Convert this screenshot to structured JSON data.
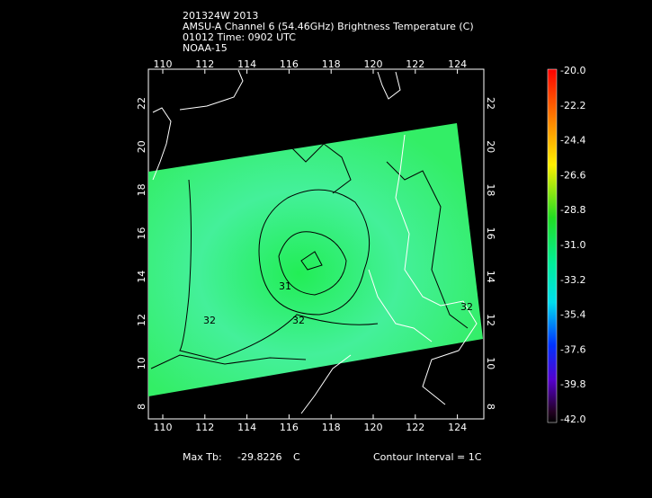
{
  "header": {
    "lines": [
      "201324W 2013",
      "AMSU-A Channel 6 (54.46GHz) Brightness Temperature (C)",
      "01012 Time: 0902 UTC",
      "NOAA-15"
    ]
  },
  "map": {
    "longitude_ticks": [
      110,
      112,
      114,
      116,
      118,
      120,
      122,
      124
    ],
    "latitude_ticks": [
      22,
      20,
      18,
      16,
      14,
      12,
      10,
      8
    ],
    "contour_labels": [
      "31",
      "32",
      "32",
      "32"
    ]
  },
  "colorbar": {
    "labels": [
      "-20.0",
      "-22.2",
      "-24.4",
      "-26.6",
      "-28.8",
      "-31.0",
      "-33.2",
      "-35.4",
      "-37.6",
      "-39.8",
      "-42.0"
    ]
  },
  "footer": {
    "max_label": "Max Tb:",
    "max_value": "-29.8226",
    "max_unit": "C",
    "contour_interval": "Contour Interval = 1C"
  }
}
